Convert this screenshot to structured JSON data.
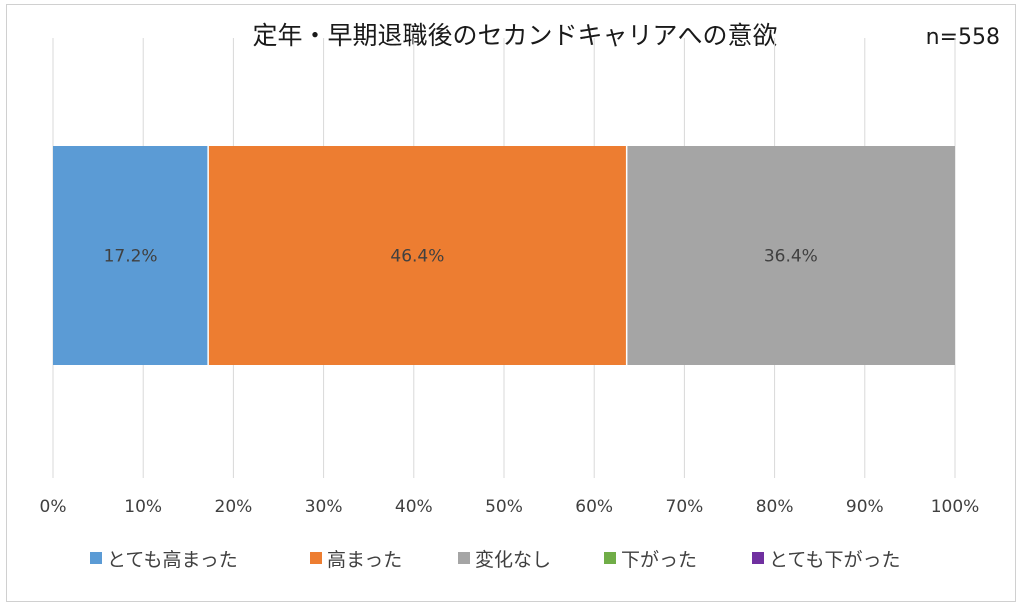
{
  "chart_data": {
    "type": "bar",
    "orientation": "horizontal-stacked-100",
    "title": "定年・早期退職後のセカンドキャリアへの意欲",
    "sample_size": "n=558",
    "categories": [
      ""
    ],
    "series": [
      {
        "name": "とても高まった",
        "values": [
          17.2
        ],
        "label": "17.2%",
        "color": "#5b9bd5"
      },
      {
        "name": "高まった",
        "values": [
          46.4
        ],
        "label": "46.4%",
        "color": "#ed7d31"
      },
      {
        "name": "変化なし",
        "values": [
          36.4
        ],
        "label": "36.4%",
        "color": "#a5a5a5"
      },
      {
        "name": "下がった",
        "values": [
          0
        ],
        "label": "",
        "color": "#70ad47"
      },
      {
        "name": "とても下がった",
        "values": [
          0
        ],
        "label": "",
        "color": "#7030a0"
      }
    ],
    "xlim": [
      0,
      100
    ],
    "xticks": [
      "0%",
      "10%",
      "20%",
      "30%",
      "40%",
      "50%",
      "60%",
      "70%",
      "80%",
      "90%",
      "100%"
    ],
    "grid": "vertical",
    "legend_position": "bottom",
    "data_label_color": "#404040",
    "grid_color": "#d9d9d9"
  }
}
